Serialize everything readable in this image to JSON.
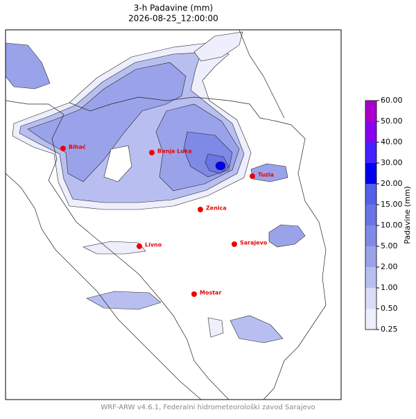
{
  "title": "3-h Padavine (mm)",
  "subtitle": "2026-08-25_12:00:00",
  "cities": [
    "Bihać",
    "Banja Luka",
    "Tuzla",
    "Zenica",
    "Livno",
    "Sarajevo",
    "Mostar"
  ],
  "colorbar": {
    "label": "Padavine (mm)",
    "ticks": [
      "0.25",
      "0.50",
      "1.00",
      "2.00",
      "5.00",
      "10.00",
      "15.00",
      "20.00",
      "30.00",
      "40.00",
      "50.00",
      "60.00"
    ]
  },
  "footer": "WRF-ARW v4.6.1, Federalni hidrometeorološki zavod Sarajevo"
}
